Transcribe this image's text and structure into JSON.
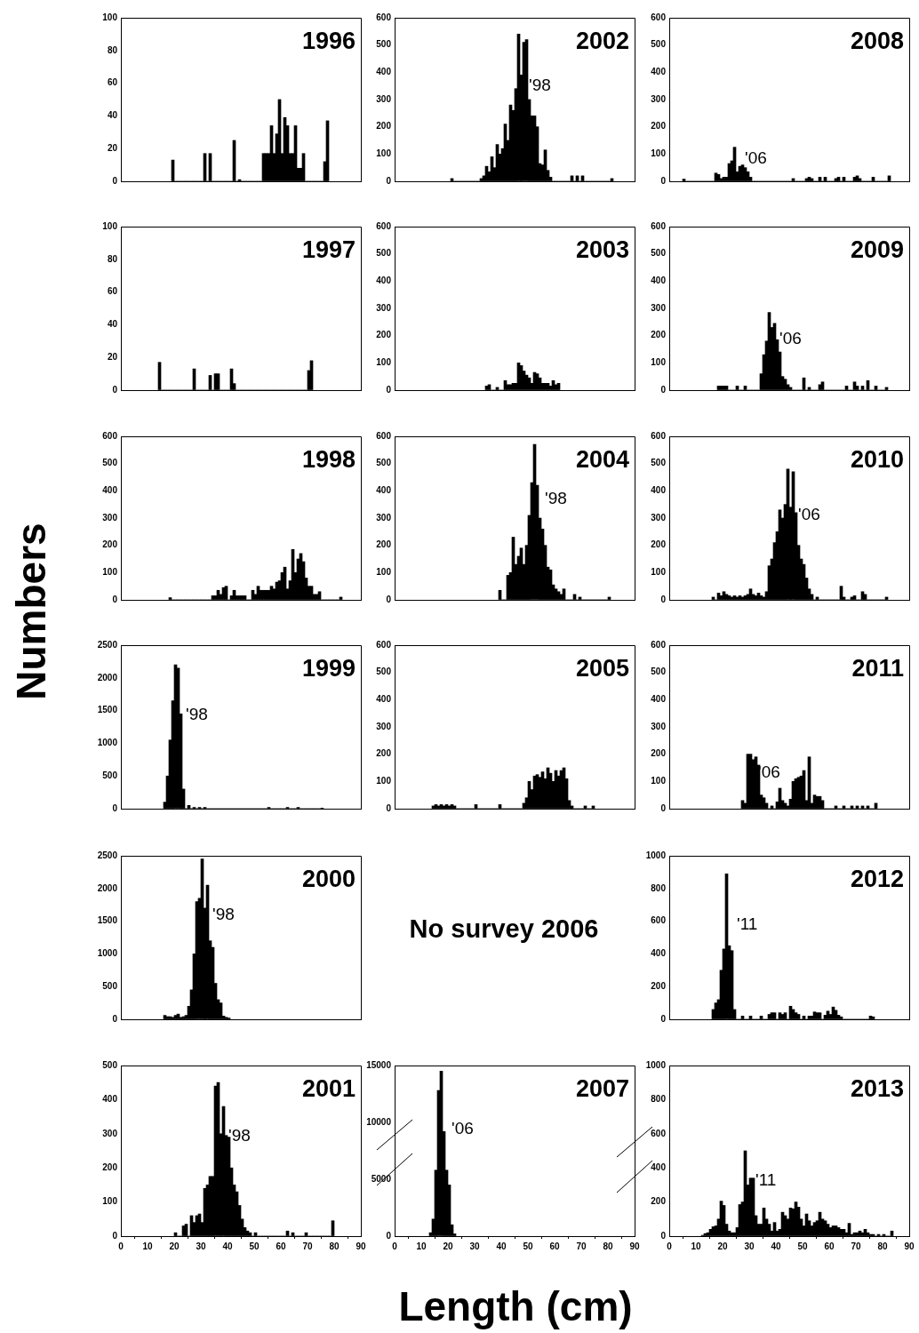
{
  "chart_data": [
    {
      "type": "histogram",
      "title": "1996",
      "bins": [
        19,
        20,
        21,
        22,
        23,
        24,
        25,
        26,
        27,
        28,
        29,
        30,
        31,
        32,
        33,
        34,
        35,
        36,
        37,
        38,
        39,
        40,
        41,
        42,
        43,
        44,
        45,
        46,
        47,
        48,
        49,
        50,
        51,
        52,
        53,
        54,
        55,
        56,
        57,
        58,
        59,
        60,
        61,
        62,
        63,
        64,
        65,
        66,
        67,
        68,
        69,
        70,
        71,
        72,
        73,
        74,
        75,
        76,
        77,
        78
      ],
      "values": [
        13,
        0,
        0,
        0,
        0,
        0,
        0,
        0,
        0,
        0,
        0,
        0,
        17,
        0,
        17,
        0,
        0,
        0,
        0,
        0,
        0,
        0,
        0,
        25,
        0,
        1,
        0,
        0,
        0,
        0,
        0,
        0,
        0,
        0,
        17,
        17,
        17,
        34,
        17,
        29,
        50,
        17,
        39,
        34,
        17,
        17,
        34,
        8,
        8,
        17,
        0,
        0,
        0,
        0,
        0,
        0,
        0,
        12,
        37
      ],
      "color": "#000000",
      "xlim": [
        0,
        90
      ],
      "xticks": [
        0,
        10,
        20,
        30,
        40,
        50,
        60,
        70,
        80,
        90
      ],
      "ylim": [
        0,
        100
      ],
      "yticks": [
        0,
        20,
        40,
        60,
        80,
        100
      ],
      "grid": false,
      "legend": false,
      "tick_labels": "y"
    },
    {
      "type": "histogram",
      "title": "2002",
      "bins": [
        21,
        22,
        23,
        24,
        25,
        26,
        27,
        28,
        29,
        30,
        31,
        32,
        33,
        34,
        35,
        36,
        37,
        38,
        39,
        40,
        41,
        42,
        43,
        44,
        45,
        46,
        47,
        48,
        49,
        50,
        51,
        52,
        53,
        54,
        55,
        56,
        57,
        58,
        59,
        60,
        61,
        62,
        63,
        64,
        65,
        66,
        67,
        68,
        69,
        70,
        71,
        72,
        73,
        74,
        75,
        76,
        77,
        78,
        79,
        80,
        81,
        82
      ],
      "values": [
        10,
        0,
        0,
        0,
        0,
        0,
        0,
        0,
        0,
        0,
        0,
        10,
        20,
        55,
        35,
        90,
        50,
        135,
        100,
        120,
        210,
        150,
        280,
        260,
        340,
        540,
        390,
        510,
        520,
        300,
        240,
        240,
        200,
        65,
        60,
        115,
        40,
        15,
        0,
        0,
        0,
        0,
        0,
        0,
        0,
        20,
        0,
        20,
        0,
        20,
        0,
        0,
        0,
        0,
        0,
        0,
        0,
        0,
        0,
        0,
        10
      ],
      "color": "#000000",
      "xlim": [
        0,
        90
      ],
      "xticks": [
        0,
        10,
        20,
        30,
        40,
        50,
        60,
        70,
        80,
        90
      ],
      "ylim": [
        0,
        600
      ],
      "yticks": [
        0,
        100,
        200,
        300,
        400,
        500,
        600
      ],
      "grid": false,
      "legend": false,
      "tick_labels": "y",
      "annotations": [
        "'98"
      ]
    },
    {
      "type": "histogram",
      "title": "2008",
      "bins": [
        5,
        6,
        7,
        8,
        9,
        10,
        11,
        12,
        13,
        14,
        15,
        16,
        17,
        18,
        19,
        20,
        21,
        22,
        23,
        24,
        25,
        26,
        27,
        28,
        29,
        30,
        31,
        32,
        33,
        34,
        35,
        36,
        37,
        38,
        39,
        40,
        41,
        42,
        43,
        44,
        45,
        46,
        47,
        48,
        49,
        50,
        51,
        52,
        53,
        54,
        55,
        56,
        57,
        58,
        59,
        60,
        61,
        62,
        63,
        64,
        65,
        66,
        67,
        68,
        69,
        70,
        71,
        72,
        73,
        74,
        75,
        76,
        77,
        78,
        79,
        80,
        81,
        82,
        83
      ],
      "values": [
        8,
        0,
        0,
        0,
        0,
        0,
        0,
        0,
        0,
        0,
        0,
        0,
        30,
        25,
        10,
        15,
        15,
        65,
        75,
        125,
        35,
        55,
        60,
        50,
        35,
        15,
        0,
        0,
        0,
        0,
        0,
        0,
        0,
        0,
        0,
        0,
        0,
        0,
        0,
        0,
        0,
        10,
        0,
        0,
        0,
        0,
        10,
        15,
        10,
        0,
        0,
        15,
        0,
        15,
        0,
        0,
        0,
        10,
        15,
        0,
        15,
        0,
        0,
        0,
        15,
        20,
        10,
        0,
        0,
        0,
        0,
        15,
        0,
        0,
        0,
        0,
        0,
        20
      ],
      "color": "#000000",
      "xlim": [
        0,
        90
      ],
      "xticks": [
        0,
        10,
        20,
        30,
        40,
        50,
        60,
        70,
        80,
        90
      ],
      "ylim": [
        0,
        600
      ],
      "yticks": [
        0,
        100,
        200,
        300,
        400,
        500,
        600
      ],
      "grid": false,
      "legend": false,
      "tick_labels": "y",
      "annotations": [
        "'06"
      ]
    },
    {
      "type": "histogram",
      "title": "1997",
      "bins": [
        14,
        15,
        16,
        17,
        18,
        19,
        20,
        21,
        22,
        23,
        24,
        25,
        26,
        27,
        28,
        29,
        30,
        31,
        32,
        33,
        34,
        35,
        36,
        37,
        38,
        39,
        40,
        41,
        42,
        43,
        44,
        45,
        46,
        47,
        48,
        49,
        50,
        51,
        52,
        53,
        54,
        55,
        56,
        57,
        58,
        59,
        60,
        61,
        62,
        63,
        64,
        65,
        66,
        67,
        68,
        69,
        70,
        71,
        72
      ],
      "values": [
        17,
        0,
        0,
        0,
        0,
        0,
        0,
        0,
        0,
        0,
        0,
        0,
        0,
        13,
        0,
        0,
        0,
        0,
        0,
        9,
        0,
        10,
        10,
        0,
        0,
        0,
        0,
        13,
        4,
        0,
        0,
        0,
        0,
        0,
        0,
        0,
        0,
        0,
        0,
        0,
        0,
        0,
        0,
        0,
        0,
        0,
        0,
        0,
        0,
        0,
        0,
        0,
        0,
        0,
        0,
        0,
        12,
        18
      ],
      "color": "#000000",
      "xlim": [
        0,
        90
      ],
      "xticks": [
        0,
        10,
        20,
        30,
        40,
        50,
        60,
        70,
        80,
        90
      ],
      "ylim": [
        0,
        100
      ],
      "yticks": [
        0,
        20,
        40,
        60,
        80,
        100
      ],
      "grid": false,
      "legend": false,
      "tick_labels": "y"
    },
    {
      "type": "histogram",
      "title": "2003",
      "bins": [
        34,
        35,
        36,
        37,
        38,
        39,
        40,
        41,
        42,
        43,
        44,
        45,
        46,
        47,
        48,
        49,
        50,
        51,
        52,
        53,
        54,
        55,
        56,
        57,
        58,
        59,
        60,
        61,
        62
      ],
      "values": [
        15,
        20,
        0,
        0,
        10,
        0,
        0,
        35,
        20,
        20,
        25,
        25,
        100,
        90,
        70,
        55,
        45,
        25,
        65,
        60,
        45,
        25,
        25,
        25,
        15,
        35,
        20,
        25
      ],
      "color": "#000000",
      "xlim": [
        0,
        90
      ],
      "xticks": [
        0,
        10,
        20,
        30,
        40,
        50,
        60,
        70,
        80,
        90
      ],
      "ylim": [
        0,
        600
      ],
      "yticks": [
        0,
        100,
        200,
        300,
        400,
        500,
        600
      ],
      "grid": false,
      "legend": false,
      "tick_labels": "y"
    },
    {
      "type": "histogram",
      "title": "2009",
      "bins": [
        18,
        19,
        20,
        21,
        22,
        23,
        24,
        25,
        26,
        27,
        28,
        29,
        30,
        31,
        32,
        33,
        34,
        35,
        36,
        37,
        38,
        39,
        40,
        41,
        42,
        43,
        44,
        45,
        46,
        47,
        48,
        49,
        50,
        51,
        52,
        53,
        54,
        55,
        56,
        57,
        58,
        59,
        60,
        61,
        62,
        63,
        64,
        65,
        66,
        67,
        68,
        69,
        70,
        71,
        72,
        73,
        74,
        75,
        76,
        77,
        78,
        79,
        80,
        81,
        82
      ],
      "values": [
        15,
        15,
        15,
        15,
        0,
        0,
        0,
        15,
        0,
        0,
        15,
        0,
        0,
        0,
        0,
        0,
        60,
        130,
        180,
        285,
        230,
        245,
        185,
        140,
        50,
        40,
        20,
        10,
        0,
        0,
        0,
        0,
        45,
        0,
        10,
        0,
        0,
        0,
        20,
        30,
        0,
        0,
        0,
        0,
        0,
        0,
        0,
        0,
        15,
        0,
        0,
        30,
        15,
        0,
        15,
        0,
        35,
        0,
        0,
        15,
        0,
        0,
        0,
        10
      ],
      "color": "#000000",
      "xlim": [
        0,
        90
      ],
      "xticks": [
        0,
        10,
        20,
        30,
        40,
        50,
        60,
        70,
        80,
        90
      ],
      "ylim": [
        0,
        600
      ],
      "yticks": [
        0,
        100,
        200,
        300,
        400,
        500,
        600
      ],
      "grid": false,
      "legend": false,
      "tick_labels": "y",
      "annotations": [
        "'06"
      ]
    },
    {
      "type": "histogram",
      "title": "1998",
      "ylabel": "Numbers",
      "bins": [
        18,
        19,
        20,
        21,
        22,
        23,
        24,
        25,
        26,
        27,
        28,
        29,
        30,
        31,
        32,
        33,
        34,
        35,
        36,
        37,
        38,
        39,
        40,
        41,
        42,
        43,
        44,
        45,
        46,
        47,
        48,
        49,
        50,
        51,
        52,
        53,
        54,
        55,
        56,
        57,
        58,
        59,
        60,
        61,
        62,
        63,
        64,
        65,
        66,
        67,
        68,
        69,
        70,
        71,
        72,
        73,
        74,
        75,
        76,
        77,
        78,
        79,
        80,
        81,
        82,
        83
      ],
      "values": [
        8,
        0,
        0,
        0,
        0,
        0,
        0,
        0,
        0,
        0,
        0,
        0,
        0,
        0,
        0,
        0,
        15,
        15,
        35,
        20,
        45,
        50,
        0,
        15,
        35,
        15,
        15,
        15,
        15,
        0,
        0,
        35,
        20,
        50,
        35,
        35,
        35,
        35,
        50,
        40,
        65,
        70,
        100,
        120,
        40,
        70,
        185,
        100,
        150,
        170,
        140,
        80,
        50,
        50,
        20,
        20,
        30,
        0,
        0,
        0,
        0,
        0,
        0,
        0,
        10
      ],
      "color": "#000000",
      "xlim": [
        0,
        90
      ],
      "xticks": [
        0,
        10,
        20,
        30,
        40,
        50,
        60,
        70,
        80,
        90
      ],
      "ylim": [
        0,
        600
      ],
      "yticks": [
        0,
        100,
        200,
        300,
        400,
        500,
        600
      ],
      "grid": false,
      "legend": false,
      "tick_labels": "y"
    },
    {
      "type": "histogram",
      "title": "2004",
      "bins": [
        39,
        40,
        41,
        42,
        43,
        44,
        45,
        46,
        47,
        48,
        49,
        50,
        51,
        52,
        53,
        54,
        55,
        56,
        57,
        58,
        59,
        60,
        61,
        62,
        63,
        64,
        65,
        66,
        67,
        68,
        69,
        70,
        71,
        72,
        73,
        74,
        75,
        76,
        77,
        78,
        79,
        80,
        81
      ],
      "values": [
        35,
        0,
        0,
        90,
        100,
        230,
        130,
        160,
        190,
        130,
        200,
        310,
        430,
        570,
        420,
        300,
        260,
        200,
        120,
        110,
        55,
        40,
        30,
        20,
        40,
        0,
        0,
        0,
        20,
        0,
        10,
        0,
        0,
        0,
        0,
        0,
        0,
        0,
        0,
        0,
        0,
        10
      ],
      "color": "#000000",
      "xlim": [
        0,
        90
      ],
      "xticks": [
        0,
        10,
        20,
        30,
        40,
        50,
        60,
        70,
        80,
        90
      ],
      "ylim": [
        0,
        600
      ],
      "yticks": [
        0,
        100,
        200,
        300,
        400,
        500,
        600
      ],
      "grid": false,
      "legend": false,
      "tick_labels": "y",
      "annotations": [
        "'98"
      ]
    },
    {
      "type": "histogram",
      "title": "2010",
      "bins": [
        16,
        17,
        18,
        19,
        20,
        21,
        22,
        23,
        24,
        25,
        26,
        27,
        28,
        29,
        30,
        31,
        32,
        33,
        34,
        35,
        36,
        37,
        38,
        39,
        40,
        41,
        42,
        43,
        44,
        45,
        46,
        47,
        48,
        49,
        50,
        51,
        52,
        53,
        54,
        55,
        56,
        57,
        58,
        59,
        60,
        61,
        62,
        63,
        64,
        65,
        66,
        67,
        68,
        69,
        70,
        71,
        72,
        73,
        74,
        75,
        76,
        77,
        78,
        79,
        80,
        81,
        82
      ],
      "values": [
        10,
        0,
        25,
        15,
        30,
        20,
        15,
        10,
        15,
        10,
        15,
        10,
        15,
        20,
        40,
        20,
        15,
        25,
        15,
        10,
        30,
        125,
        150,
        210,
        250,
        330,
        300,
        350,
        480,
        340,
        470,
        320,
        200,
        150,
        130,
        80,
        40,
        20,
        0,
        10,
        0,
        0,
        0,
        0,
        0,
        0,
        0,
        0,
        50,
        10,
        0,
        0,
        10,
        15,
        0,
        0,
        30,
        20,
        0,
        0,
        0,
        0,
        0,
        0,
        0,
        10
      ],
      "color": "#000000",
      "xlim": [
        0,
        90
      ],
      "xticks": [
        0,
        10,
        20,
        30,
        40,
        50,
        60,
        70,
        80,
        90
      ],
      "ylim": [
        0,
        600
      ],
      "yticks": [
        0,
        100,
        200,
        300,
        400,
        500,
        600
      ],
      "grid": false,
      "legend": false,
      "tick_labels": "y",
      "annotations": [
        "'06"
      ]
    },
    {
      "type": "histogram",
      "title": "1999",
      "bins": [
        16,
        17,
        18,
        19,
        20,
        21,
        22,
        23,
        24,
        25,
        26,
        27,
        28,
        29,
        30,
        31,
        32,
        33,
        34,
        35,
        36,
        37,
        38,
        39,
        40,
        41,
        42,
        43,
        44,
        45,
        46,
        47,
        48,
        49,
        50,
        51,
        52,
        53,
        54,
        55,
        56,
        57,
        58,
        59,
        60,
        61,
        62,
        63,
        64,
        65,
        66,
        67,
        68,
        69,
        70,
        71,
        72,
        73,
        74,
        75,
        76
      ],
      "values": [
        100,
        500,
        1050,
        1650,
        2200,
        2150,
        1450,
        300,
        0,
        50,
        0,
        20,
        0,
        20,
        0,
        20,
        0,
        0,
        0,
        0,
        0,
        0,
        0,
        0,
        0,
        0,
        0,
        0,
        0,
        0,
        0,
        0,
        0,
        0,
        0,
        0,
        0,
        0,
        0,
        20,
        0,
        0,
        0,
        0,
        0,
        0,
        20,
        0,
        0,
        0,
        20,
        0,
        0,
        0,
        0,
        0,
        0,
        0,
        0,
        10
      ],
      "color": "#000000",
      "xlim": [
        0,
        90
      ],
      "xticks": [
        0,
        10,
        20,
        30,
        40,
        50,
        60,
        70,
        80,
        90
      ],
      "ylim": [
        0,
        2500
      ],
      "yticks": [
        0,
        500,
        1000,
        1500,
        2000,
        2500
      ],
      "grid": false,
      "legend": false,
      "tick_labels": "y",
      "annotations": [
        "'98"
      ]
    },
    {
      "type": "histogram",
      "title": "2005",
      "bins": [
        14,
        15,
        16,
        17,
        18,
        19,
        20,
        21,
        22,
        23,
        24,
        25,
        26,
        27,
        28,
        29,
        30,
        31,
        32,
        33,
        34,
        35,
        36,
        37,
        38,
        39,
        40,
        41,
        42,
        43,
        44,
        45,
        46,
        47,
        48,
        49,
        50,
        51,
        52,
        53,
        54,
        55,
        56,
        57,
        58,
        59,
        60,
        61,
        62,
        63,
        64,
        65,
        66,
        67,
        68,
        69,
        70,
        71,
        72,
        73,
        74,
        75
      ],
      "values": [
        10,
        15,
        10,
        15,
        10,
        15,
        10,
        15,
        10,
        0,
        0,
        0,
        0,
        0,
        0,
        0,
        15,
        0,
        0,
        0,
        0,
        0,
        0,
        0,
        0,
        15,
        0,
        0,
        0,
        0,
        0,
        0,
        0,
        0,
        20,
        40,
        100,
        70,
        120,
        125,
        115,
        135,
        110,
        150,
        130,
        100,
        140,
        120,
        140,
        150,
        110,
        30,
        10,
        0,
        0,
        0,
        0,
        10,
        0,
        0,
        10
      ],
      "color": "#000000",
      "xlim": [
        0,
        90
      ],
      "xticks": [
        0,
        10,
        20,
        30,
        40,
        50,
        60,
        70,
        80,
        90
      ],
      "ylim": [
        0,
        600
      ],
      "yticks": [
        0,
        100,
        200,
        300,
        400,
        500,
        600
      ],
      "grid": false,
      "legend": false,
      "tick_labels": "y"
    },
    {
      "type": "histogram",
      "title": "2011",
      "bins": [
        27,
        28,
        29,
        30,
        31,
        32,
        33,
        34,
        35,
        36,
        37,
        38,
        39,
        40,
        41,
        42,
        43,
        44,
        45,
        46,
        47,
        48,
        49,
        50,
        51,
        52,
        53,
        54,
        55,
        56,
        57,
        58,
        59,
        60,
        61,
        62,
        63,
        64,
        65,
        66,
        67,
        68,
        69,
        70,
        71,
        72,
        73,
        74,
        75,
        76,
        77,
        78
      ],
      "values": [
        30,
        20,
        200,
        200,
        180,
        190,
        160,
        50,
        40,
        20,
        0,
        10,
        0,
        25,
        75,
        30,
        20,
        10,
        35,
        100,
        110,
        115,
        120,
        140,
        30,
        190,
        20,
        50,
        45,
        45,
        30,
        0,
        0,
        0,
        0,
        10,
        0,
        0,
        10,
        0,
        0,
        10,
        0,
        10,
        0,
        10,
        0,
        10,
        0,
        0,
        20
      ],
      "color": "#000000",
      "xlim": [
        0,
        90
      ],
      "xticks": [
        0,
        10,
        20,
        30,
        40,
        50,
        60,
        70,
        80,
        90
      ],
      "ylim": [
        0,
        600
      ],
      "yticks": [
        0,
        100,
        200,
        300,
        400,
        500,
        600
      ],
      "grid": false,
      "legend": false,
      "tick_labels": "y",
      "annotations": [
        "'06"
      ]
    },
    {
      "type": "histogram",
      "title": "2000",
      "bins": [
        16,
        17,
        18,
        19,
        20,
        21,
        22,
        23,
        24,
        25,
        26,
        27,
        28,
        29,
        30,
        31,
        32,
        33,
        34,
        35,
        36,
        37,
        38,
        39,
        40,
        41
      ],
      "values": [
        60,
        40,
        40,
        30,
        60,
        80,
        30,
        40,
        60,
        200,
        450,
        1000,
        1800,
        1850,
        2450,
        1700,
        2050,
        1200,
        1100,
        550,
        300,
        250,
        50,
        30,
        20
      ],
      "color": "#000000",
      "xlim": [
        0,
        90
      ],
      "xticks": [
        0,
        10,
        20,
        30,
        40,
        50,
        60,
        70,
        80,
        90
      ],
      "ylim": [
        0,
        2500
      ],
      "yticks": [
        0,
        500,
        1000,
        1500,
        2000,
        2500
      ],
      "grid": false,
      "legend": false,
      "tick_labels": "y",
      "annotations": [
        "'98"
      ]
    },
    {
      "type": "other",
      "title": "No survey 2006"
    },
    {
      "type": "histogram",
      "title": "2012",
      "bins": [
        16,
        17,
        18,
        19,
        20,
        21,
        22,
        23,
        24,
        25,
        26,
        27,
        28,
        29,
        30,
        31,
        32,
        33,
        34,
        35,
        36,
        37,
        38,
        39,
        40,
        41,
        42,
        43,
        44,
        45,
        46,
        47,
        48,
        49,
        50,
        51,
        52,
        53,
        54,
        55,
        56,
        57,
        58,
        59,
        60,
        61,
        62,
        63,
        64,
        65,
        66,
        67,
        68,
        69,
        70,
        71,
        72,
        73,
        74,
        75,
        76,
        77
      ],
      "values": [
        60,
        100,
        120,
        300,
        430,
        890,
        450,
        420,
        60,
        0,
        0,
        20,
        0,
        0,
        20,
        0,
        0,
        0,
        20,
        0,
        0,
        30,
        40,
        40,
        0,
        40,
        30,
        40,
        0,
        80,
        60,
        40,
        30,
        0,
        20,
        0,
        20,
        20,
        45,
        40,
        40,
        0,
        25,
        50,
        30,
        75,
        55,
        25,
        15,
        0,
        0,
        0,
        0,
        0,
        0,
        0,
        0,
        0,
        0,
        20,
        15
      ],
      "color": "#000000",
      "xlim": [
        0,
        90
      ],
      "xticks": [
        0,
        10,
        20,
        30,
        40,
        50,
        60,
        70,
        80,
        90
      ],
      "ylim": [
        0,
        1000
      ],
      "yticks": [
        0,
        200,
        400,
        600,
        800,
        1000
      ],
      "grid": false,
      "legend": false,
      "tick_labels": "y",
      "annotations": [
        "'11"
      ]
    },
    {
      "type": "histogram",
      "title": "2001",
      "bins": [
        20,
        21,
        22,
        23,
        24,
        25,
        26,
        27,
        28,
        29,
        30,
        31,
        32,
        33,
        34,
        35,
        36,
        37,
        38,
        39,
        40,
        41,
        42,
        43,
        44,
        45,
        46,
        47,
        48,
        49,
        50,
        51,
        52,
        53,
        54,
        55,
        56,
        57,
        58,
        59,
        60,
        61,
        62,
        63,
        64,
        65,
        66,
        67,
        68,
        69,
        70,
        71,
        72,
        73,
        74,
        75,
        76,
        77,
        78,
        79,
        80
      ],
      "values": [
        10,
        0,
        0,
        30,
        35,
        0,
        60,
        40,
        60,
        65,
        40,
        140,
        150,
        175,
        175,
        440,
        450,
        300,
        380,
        295,
        290,
        200,
        150,
        130,
        90,
        50,
        25,
        15,
        10,
        0,
        10,
        0,
        0,
        0,
        0,
        0,
        0,
        0,
        0,
        0,
        0,
        0,
        15,
        0,
        10,
        0,
        0,
        0,
        0,
        10,
        0,
        0,
        0,
        0,
        0,
        0,
        0,
        0,
        0,
        45
      ],
      "color": "#000000",
      "xlim": [
        0,
        90
      ],
      "xticks": [
        0,
        10,
        20,
        30,
        40,
        50,
        60,
        70,
        80,
        90
      ],
      "ylim": [
        0,
        500
      ],
      "yticks": [
        0,
        100,
        200,
        300,
        400,
        500
      ],
      "grid": false,
      "legend": false,
      "annotations": [
        "'98"
      ]
    },
    {
      "type": "histogram",
      "title": "2007",
      "xlabel": "Length (cm)",
      "bins": [
        13,
        14,
        15,
        16,
        17,
        18,
        19,
        20,
        21,
        22,
        23
      ],
      "values": [
        300,
        1500,
        5800,
        12800,
        14500,
        9200,
        5800,
        4500,
        1000,
        200
      ],
      "color": "#000000",
      "xlim": [
        0,
        90
      ],
      "xticks": [
        0,
        10,
        20,
        30,
        40,
        50,
        60,
        70,
        80,
        90
      ],
      "ylim": [
        0,
        15000
      ],
      "yticks": [
        0,
        5000,
        10000,
        15000
      ],
      "grid": false,
      "legend": false,
      "annotations": [
        "'06"
      ]
    },
    {
      "type": "histogram",
      "title": "2013",
      "bins": [
        12,
        13,
        14,
        15,
        16,
        17,
        18,
        19,
        20,
        21,
        22,
        23,
        24,
        25,
        26,
        27,
        28,
        29,
        30,
        31,
        32,
        33,
        34,
        35,
        36,
        37,
        38,
        39,
        40,
        41,
        42,
        43,
        44,
        45,
        46,
        47,
        48,
        49,
        50,
        51,
        52,
        53,
        54,
        55,
        56,
        57,
        58,
        59,
        60,
        61,
        62,
        63,
        64,
        65,
        66,
        67,
        68,
        69,
        70,
        71,
        72,
        73,
        74,
        75,
        76,
        77,
        78,
        79,
        80,
        81,
        82,
        83,
        84
      ],
      "values": [
        5,
        15,
        20,
        40,
        55,
        60,
        100,
        205,
        180,
        70,
        30,
        20,
        20,
        50,
        185,
        200,
        500,
        300,
        340,
        340,
        120,
        70,
        70,
        165,
        100,
        70,
        30,
        80,
        30,
        40,
        140,
        120,
        100,
        165,
        160,
        200,
        170,
        100,
        60,
        130,
        90,
        60,
        80,
        90,
        140,
        100,
        90,
        70,
        50,
        60,
        60,
        50,
        40,
        40,
        20,
        75,
        10,
        20,
        20,
        30,
        20,
        40,
        20,
        10,
        10,
        0,
        10,
        0,
        10,
        0,
        0,
        30
      ],
      "color": "#000000",
      "xlim": [
        0,
        90
      ],
      "xticks": [
        0,
        10,
        20,
        30,
        40,
        50,
        60,
        70,
        80,
        90
      ],
      "ylim": [
        0,
        1000
      ],
      "yticks": [
        0,
        200,
        400,
        600,
        800,
        1000
      ],
      "grid": false,
      "legend": false,
      "annotations": [
        "'11"
      ]
    }
  ]
}
